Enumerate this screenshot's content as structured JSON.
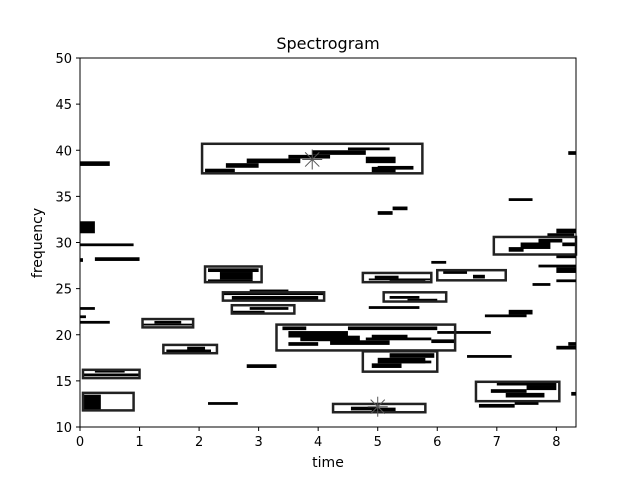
{
  "chart_data": {
    "type": "heatmap",
    "title": "Spectrogram",
    "xlabel": "time",
    "ylabel": "frequency",
    "xlim": [
      0,
      8.33
    ],
    "ylim": [
      10,
      50
    ],
    "xticks": [
      0,
      1,
      2,
      3,
      4,
      5,
      6,
      7,
      8
    ],
    "yticks": [
      10,
      15,
      20,
      25,
      30,
      35,
      40,
      45,
      50
    ],
    "grid": false,
    "ink_color": "#000000",
    "box_color": "#222222",
    "cells": [
      {
        "x0": 0.0,
        "x1": 0.5,
        "y0": 38.3,
        "y1": 38.8
      },
      {
        "x0": 0.0,
        "x1": 0.25,
        "y0": 31.0,
        "y1": 32.3
      },
      {
        "x0": 0.0,
        "x1": 0.9,
        "y0": 29.6,
        "y1": 29.9
      },
      {
        "x0": 0.25,
        "x1": 1.0,
        "y0": 28.0,
        "y1": 28.4
      },
      {
        "x0": 0.0,
        "x1": 0.05,
        "y0": 27.9,
        "y1": 28.3
      },
      {
        "x0": 0.0,
        "x1": 0.25,
        "y0": 22.7,
        "y1": 23.0
      },
      {
        "x0": 0.0,
        "x1": 0.5,
        "y0": 21.2,
        "y1": 21.5
      },
      {
        "x0": 0.0,
        "x1": 0.1,
        "y0": 21.8,
        "y1": 22.1
      },
      {
        "x0": 0.05,
        "x1": 1.0,
        "y0": 15.5,
        "y1": 15.8
      },
      {
        "x0": 0.25,
        "x1": 0.75,
        "y0": 15.9,
        "y1": 16.2
      },
      {
        "x0": 0.05,
        "x1": 0.35,
        "y0": 11.9,
        "y1": 13.5
      },
      {
        "x0": 1.05,
        "x1": 1.9,
        "y0": 21.0,
        "y1": 21.2
      },
      {
        "x0": 1.25,
        "x1": 1.7,
        "y0": 21.2,
        "y1": 21.5
      },
      {
        "x0": 1.45,
        "x1": 2.2,
        "y0": 18.1,
        "y1": 18.4
      },
      {
        "x0": 1.8,
        "x1": 2.1,
        "y0": 18.4,
        "y1": 18.7
      },
      {
        "x0": 2.15,
        "x1": 2.65,
        "y0": 12.4,
        "y1": 12.7
      },
      {
        "x0": 2.15,
        "x1": 3.0,
        "y0": 26.8,
        "y1": 27.2
      },
      {
        "x0": 2.35,
        "x1": 2.9,
        "y0": 26.0,
        "y1": 26.8
      },
      {
        "x0": 2.15,
        "x1": 2.9,
        "y0": 25.7,
        "y1": 26.0
      },
      {
        "x0": 2.4,
        "x1": 4.1,
        "y0": 24.3,
        "y1": 24.6
      },
      {
        "x0": 2.55,
        "x1": 4.0,
        "y0": 23.8,
        "y1": 24.2
      },
      {
        "x0": 2.85,
        "x1": 3.5,
        "y0": 24.6,
        "y1": 24.9
      },
      {
        "x0": 2.85,
        "x1": 3.5,
        "y0": 22.7,
        "y1": 23.0
      },
      {
        "x0": 2.55,
        "x1": 3.1,
        "y0": 22.3,
        "y1": 22.6
      },
      {
        "x0": 2.8,
        "x1": 3.3,
        "y0": 16.4,
        "y1": 16.8
      },
      {
        "x0": 2.45,
        "x1": 3.0,
        "y0": 38.1,
        "y1": 38.6
      },
      {
        "x0": 2.8,
        "x1": 3.7,
        "y0": 38.6,
        "y1": 39.1
      },
      {
        "x0": 3.5,
        "x1": 4.2,
        "y0": 39.1,
        "y1": 39.5
      },
      {
        "x0": 3.9,
        "x1": 4.8,
        "y0": 39.5,
        "y1": 40.0
      },
      {
        "x0": 4.5,
        "x1": 5.2,
        "y0": 40.0,
        "y1": 40.3
      },
      {
        "x0": 4.8,
        "x1": 5.3,
        "y0": 38.6,
        "y1": 39.3
      },
      {
        "x0": 4.9,
        "x1": 5.3,
        "y0": 37.5,
        "y1": 38.2
      },
      {
        "x0": 5.0,
        "x1": 5.6,
        "y0": 37.9,
        "y1": 38.3
      },
      {
        "x0": 2.1,
        "x1": 2.6,
        "y0": 37.6,
        "y1": 38.0
      },
      {
        "x0": 5.0,
        "x1": 5.25,
        "y0": 33.0,
        "y1": 33.4
      },
      {
        "x0": 5.25,
        "x1": 5.5,
        "y0": 33.5,
        "y1": 33.9
      },
      {
        "x0": 3.4,
        "x1": 3.8,
        "y0": 20.5,
        "y1": 20.9
      },
      {
        "x0": 3.5,
        "x1": 4.5,
        "y0": 19.7,
        "y1": 20.4
      },
      {
        "x0": 3.7,
        "x1": 4.7,
        "y0": 19.3,
        "y1": 19.9
      },
      {
        "x0": 4.2,
        "x1": 5.2,
        "y0": 18.9,
        "y1": 19.4
      },
      {
        "x0": 4.5,
        "x1": 6.0,
        "y0": 20.5,
        "y1": 20.9
      },
      {
        "x0": 4.9,
        "x1": 5.5,
        "y0": 19.5,
        "y1": 20.0
      },
      {
        "x0": 3.5,
        "x1": 4.0,
        "y0": 18.8,
        "y1": 19.2
      },
      {
        "x0": 4.8,
        "x1": 5.9,
        "y0": 19.4,
        "y1": 19.7
      },
      {
        "x0": 5.0,
        "x1": 5.8,
        "y0": 16.9,
        "y1": 17.5
      },
      {
        "x0": 5.2,
        "x1": 5.95,
        "y0": 17.5,
        "y1": 18.0
      },
      {
        "x0": 4.9,
        "x1": 5.4,
        "y0": 16.4,
        "y1": 16.9
      },
      {
        "x0": 5.4,
        "x1": 5.9,
        "y0": 16.9,
        "y1": 17.2
      },
      {
        "x0": 4.85,
        "x1": 5.7,
        "y0": 22.8,
        "y1": 23.1
      },
      {
        "x0": 4.95,
        "x1": 5.35,
        "y0": 26.1,
        "y1": 26.4
      },
      {
        "x0": 4.85,
        "x1": 5.9,
        "y0": 25.9,
        "y1": 26.1
      },
      {
        "x0": 5.2,
        "x1": 5.8,
        "y0": 25.6,
        "y1": 25.9
      },
      {
        "x0": 5.2,
        "x1": 5.7,
        "y0": 23.9,
        "y1": 24.2
      },
      {
        "x0": 5.5,
        "x1": 6.0,
        "y0": 23.6,
        "y1": 23.9
      },
      {
        "x0": 4.55,
        "x1": 5.0,
        "y0": 11.8,
        "y1": 12.2
      },
      {
        "x0": 4.9,
        "x1": 5.3,
        "y0": 11.7,
        "y1": 12.1
      },
      {
        "x0": 5.9,
        "x1": 6.15,
        "y0": 27.7,
        "y1": 28.0
      },
      {
        "x0": 6.1,
        "x1": 6.5,
        "y0": 26.6,
        "y1": 26.9
      },
      {
        "x0": 6.6,
        "x1": 6.8,
        "y0": 26.1,
        "y1": 26.5
      },
      {
        "x0": 6.0,
        "x1": 6.9,
        "y0": 20.1,
        "y1": 20.4
      },
      {
        "x0": 5.9,
        "x1": 6.3,
        "y0": 19.1,
        "y1": 19.5
      },
      {
        "x0": 6.5,
        "x1": 7.25,
        "y0": 17.5,
        "y1": 17.8
      },
      {
        "x0": 6.8,
        "x1": 7.5,
        "y0": 21.9,
        "y1": 22.2
      },
      {
        "x0": 7.2,
        "x1": 7.6,
        "y0": 22.2,
        "y1": 22.7
      },
      {
        "x0": 7.2,
        "x1": 7.6,
        "y0": 34.5,
        "y1": 34.8
      },
      {
        "x0": 7.2,
        "x1": 7.45,
        "y0": 29.0,
        "y1": 29.5
      },
      {
        "x0": 7.4,
        "x1": 7.9,
        "y0": 29.3,
        "y1": 30.0
      },
      {
        "x0": 7.7,
        "x1": 8.1,
        "y0": 30.0,
        "y1": 30.4
      },
      {
        "x0": 7.85,
        "x1": 8.3,
        "y0": 30.5,
        "y1": 31.0
      },
      {
        "x0": 8.0,
        "x1": 8.33,
        "y0": 31.0,
        "y1": 31.5
      },
      {
        "x0": 8.1,
        "x1": 8.33,
        "y0": 29.6,
        "y1": 30.0
      },
      {
        "x0": 8.2,
        "x1": 8.33,
        "y0": 39.5,
        "y1": 39.9
      },
      {
        "x0": 7.7,
        "x1": 8.33,
        "y0": 27.3,
        "y1": 27.6
      },
      {
        "x0": 8.0,
        "x1": 8.33,
        "y0": 26.7,
        "y1": 27.3
      },
      {
        "x0": 8.0,
        "x1": 8.33,
        "y0": 28.3,
        "y1": 28.7
      },
      {
        "x0": 7.6,
        "x1": 7.9,
        "y0": 25.3,
        "y1": 25.6
      },
      {
        "x0": 8.0,
        "x1": 8.33,
        "y0": 25.7,
        "y1": 26.0
      },
      {
        "x0": 7.0,
        "x1": 8.0,
        "y0": 14.5,
        "y1": 14.8
      },
      {
        "x0": 6.9,
        "x1": 7.5,
        "y0": 13.7,
        "y1": 14.1
      },
      {
        "x0": 7.15,
        "x1": 7.8,
        "y0": 13.2,
        "y1": 13.7
      },
      {
        "x0": 7.5,
        "x1": 8.0,
        "y0": 14.0,
        "y1": 14.5
      },
      {
        "x0": 6.7,
        "x1": 7.3,
        "y0": 12.1,
        "y1": 12.5
      },
      {
        "x0": 7.3,
        "x1": 7.7,
        "y0": 12.4,
        "y1": 12.8
      },
      {
        "x0": 8.0,
        "x1": 8.33,
        "y0": 18.4,
        "y1": 18.8
      },
      {
        "x0": 8.2,
        "x1": 8.33,
        "y0": 18.8,
        "y1": 19.2
      },
      {
        "x0": 8.25,
        "x1": 8.33,
        "y0": 13.4,
        "y1": 13.8
      }
    ],
    "boxes": [
      {
        "x0": 0.05,
        "x1": 0.9,
        "y0": 11.8,
        "y1": 13.7
      },
      {
        "x0": 0.05,
        "x1": 1.0,
        "y0": 15.3,
        "y1": 16.2
      },
      {
        "x0": 1.05,
        "x1": 1.9,
        "y0": 20.8,
        "y1": 21.7
      },
      {
        "x0": 1.4,
        "x1": 2.3,
        "y0": 18.0,
        "y1": 18.9
      },
      {
        "x0": 2.1,
        "x1": 3.05,
        "y0": 25.7,
        "y1": 27.4
      },
      {
        "x0": 2.4,
        "x1": 4.1,
        "y0": 23.7,
        "y1": 24.6
      },
      {
        "x0": 2.55,
        "x1": 3.6,
        "y0": 22.3,
        "y1": 23.2
      },
      {
        "x0": 2.05,
        "x1": 5.75,
        "y0": 37.5,
        "y1": 40.7
      },
      {
        "x0": 3.3,
        "x1": 6.3,
        "y0": 18.3,
        "y1": 21.1
      },
      {
        "x0": 4.75,
        "x1": 6.0,
        "y0": 16.0,
        "y1": 18.2
      },
      {
        "x0": 4.75,
        "x1": 5.9,
        "y0": 25.7,
        "y1": 26.7
      },
      {
        "x0": 5.1,
        "x1": 6.15,
        "y0": 23.6,
        "y1": 24.6
      },
      {
        "x0": 6.0,
        "x1": 7.15,
        "y0": 25.9,
        "y1": 27.0
      },
      {
        "x0": 4.25,
        "x1": 5.8,
        "y0": 11.6,
        "y1": 12.5
      },
      {
        "x0": 6.95,
        "x1": 8.33,
        "y0": 28.7,
        "y1": 30.6
      },
      {
        "x0": 6.65,
        "x1": 8.05,
        "y0": 12.8,
        "y1": 14.9
      }
    ],
    "markers": [
      {
        "x": 3.9,
        "y": 39.0
      },
      {
        "x": 5.0,
        "y": 12.2
      }
    ]
  }
}
